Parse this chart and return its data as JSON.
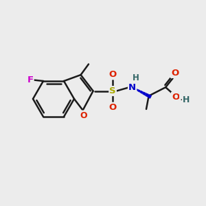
{
  "bg_color": "#ececec",
  "bond_color": "#1a1a1a",
  "bond_width": 1.8,
  "atom_colors": {
    "F": "#cc00cc",
    "O": "#dd2200",
    "S": "#aaaa00",
    "N": "#0000cc",
    "C": "#1a1a1a",
    "H": "#336666"
  },
  "font_size": 9,
  "fig_size": [
    3.0,
    3.0
  ],
  "dpi": 100,
  "xlim": [
    0,
    10
  ],
  "ylim": [
    0,
    10
  ]
}
